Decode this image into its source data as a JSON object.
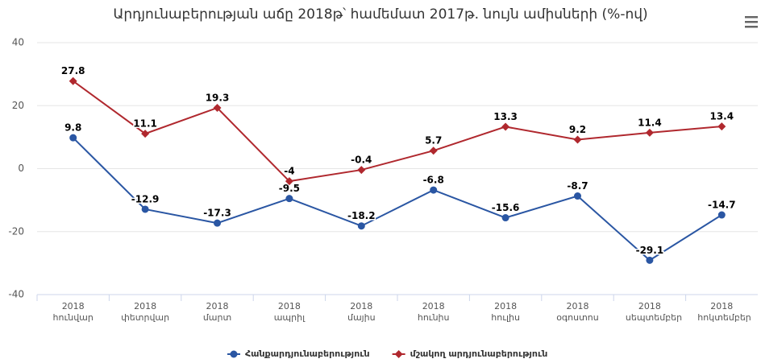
{
  "chart_data": {
    "type": "line",
    "title": "Արդյունաբերության աճը 2018թ՝ համեմատ 2017թ. նույն ամիսների (%-ով)",
    "categories": [
      "2018 հունվար",
      "2018 փետրվար",
      "2018 մարտ",
      "2018 ապրիլ",
      "2018 մայիս",
      "2018 հունիս",
      "2018 հուլիս",
      "2018 օգոստոս",
      "2018 սեպտեմբեր",
      "2018 հոկտեմբեր"
    ],
    "series": [
      {
        "name": "Հանքարդյունաբերություն",
        "color": "#2a56a3",
        "marker": "circle",
        "values": [
          9.8,
          -12.9,
          -17.3,
          -9.5,
          -18.2,
          -6.8,
          -15.6,
          -8.7,
          -29.1,
          -14.7
        ]
      },
      {
        "name": "մշակող արդյունաբերություն",
        "color": "#b0282e",
        "marker": "diamond",
        "values": [
          27.8,
          11.1,
          19.3,
          -4,
          -0.4,
          5.7,
          13.3,
          9.2,
          11.4,
          13.4
        ]
      }
    ],
    "ylim": [
      -40,
      40
    ],
    "yticks": [
      -40,
      -20,
      0,
      20,
      40
    ],
    "grid": true,
    "legend": "bottom"
  }
}
